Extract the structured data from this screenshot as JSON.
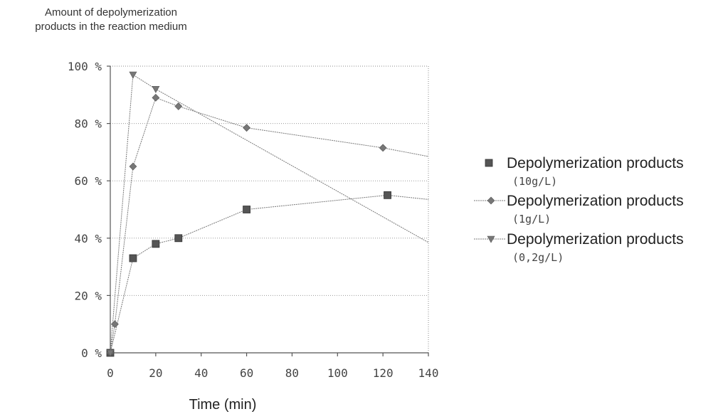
{
  "chart_data": {
    "type": "line",
    "ylabel_lines": [
      "Amount of depolymerization",
      "products in the reaction medium"
    ],
    "xlabel": "Time (min)",
    "xlim": [
      0,
      140
    ],
    "ylim": [
      0,
      100
    ],
    "x_ticks": [
      0,
      20,
      40,
      60,
      80,
      100,
      120,
      140
    ],
    "x_tick_labels": [
      "0",
      "20",
      "40",
      "60",
      "80",
      "100",
      "120",
      "140"
    ],
    "y_ticks": [
      0,
      20,
      40,
      60,
      80,
      100
    ],
    "y_tick_labels": [
      "0 %",
      "20 %",
      "40 %",
      "60 %",
      "80 %",
      "100 %"
    ],
    "grid": "horizontal",
    "legend_position": "right",
    "series": [
      {
        "name": "Depolymerization products",
        "sublabel": "(10g/L)",
        "marker": "square",
        "color": "#555555",
        "points": [
          [
            0,
            0
          ],
          [
            10,
            33
          ],
          [
            20,
            38
          ],
          [
            30,
            40
          ],
          [
            60,
            50
          ],
          [
            122,
            55
          ],
          [
            140,
            53.5
          ]
        ]
      },
      {
        "name": "Depolymerization products",
        "sublabel": "(1g/L)",
        "marker": "diamond",
        "color": "#777777",
        "points": [
          [
            0,
            0
          ],
          [
            2,
            10
          ],
          [
            10,
            65
          ],
          [
            20,
            89
          ],
          [
            30,
            86
          ],
          [
            60,
            78.5
          ],
          [
            120,
            71.5
          ],
          [
            140,
            68.5
          ]
        ]
      },
      {
        "name": "Depolymerization products",
        "sublabel": "(0,2g/L)",
        "marker": "triangle",
        "color": "#777777",
        "points": [
          [
            0,
            0
          ],
          [
            10,
            97
          ],
          [
            20,
            92
          ],
          [
            140,
            38.5
          ]
        ]
      }
    ]
  }
}
